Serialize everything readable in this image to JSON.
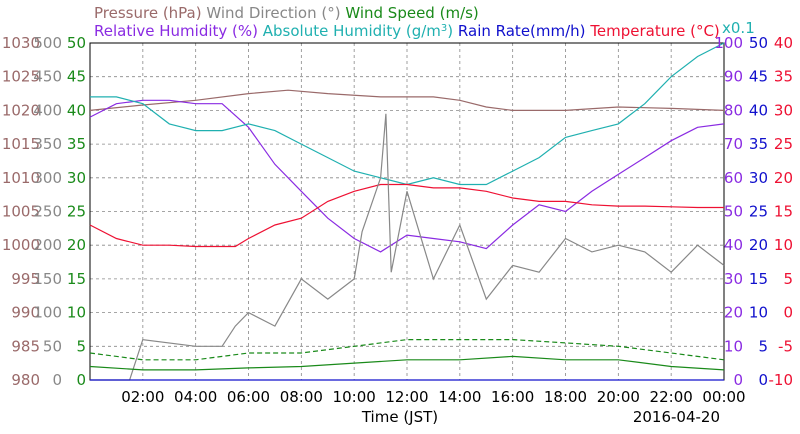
{
  "chart_data": {
    "type": "line",
    "legend": {
      "row1": [
        {
          "text": "Pressure (hPa)",
          "color": "#9a6a6a"
        },
        {
          "text": "Wind Direction (°)",
          "color": "#888888"
        },
        {
          "text": "Wind Speed (m/s)",
          "color": "#1a8a1a"
        }
      ],
      "row2": [
        {
          "text": "Relative Humidity (%)",
          "color": "#8a2be2"
        },
        {
          "text": "Absolute Humidity (g/m",
          "sup": "3",
          "close": ")",
          "color": "#20b0b0"
        },
        {
          "text": "Rain Rate(mm/h)",
          "color": "#1010cc"
        },
        {
          "text": "Temperature (°C)",
          "color": "#ee1133"
        }
      ],
      "ah_scale_note": "x0.1"
    },
    "xlabel": "Time (JST)",
    "date_label": "2016-04-20",
    "x_ticks": [
      "02:00",
      "04:00",
      "06:00",
      "08:00",
      "10:00",
      "12:00",
      "14:00",
      "16:00",
      "18:00",
      "20:00",
      "22:00",
      "00:00"
    ],
    "x_range_hours": [
      0,
      24
    ],
    "axes": {
      "pressure": {
        "ticks": [
          "1030",
          "1025",
          "1020",
          "1015",
          "1010",
          "1005",
          "1000",
          "995",
          "990",
          "985",
          "980"
        ],
        "range": [
          980,
          1030
        ],
        "color": "#9a6a6a"
      },
      "wind_dir": {
        "ticks": [
          "500",
          "450",
          "400",
          "350",
          "300",
          "250",
          "200",
          "150",
          "100",
          "50",
          "0"
        ],
        "range": [
          0,
          500
        ],
        "color": "#888888"
      },
      "wind_speed": {
        "ticks": [
          "50",
          "45",
          "40",
          "35",
          "30",
          "25",
          "20",
          "15",
          "10",
          "5",
          "0"
        ],
        "range": [
          0,
          50
        ],
        "color": "#1a8a1a"
      },
      "humidity": {
        "ticks": [
          "100",
          "90",
          "80",
          "70",
          "60",
          "50",
          "40",
          "30",
          "20",
          "10",
          "0"
        ],
        "range": [
          0,
          100
        ],
        "color": "#8a2be2"
      },
      "rain_rate": {
        "ticks": [
          "50",
          "45",
          "40",
          "35",
          "30",
          "25",
          "20",
          "15",
          "10",
          "5",
          "0"
        ],
        "range": [
          0,
          50
        ],
        "color": "#1010cc"
      },
      "temperature": {
        "ticks": [
          "40",
          "35",
          "30",
          "25",
          "20",
          "15",
          "10",
          "5",
          "0",
          "-5",
          "-10"
        ],
        "range": [
          -10,
          40
        ],
        "color": "#ee1133"
      }
    },
    "grid": true,
    "series": [
      {
        "name": "Pressure",
        "color": "#9a6a6a",
        "x": [
          0,
          2,
          4,
          6,
          7.5,
          9,
          11,
          13,
          14,
          15,
          16,
          18,
          20,
          22,
          24
        ],
        "y": [
          1020,
          1020.8,
          1021.5,
          1022.5,
          1023.0,
          1022.5,
          1022.0,
          1022.0,
          1021.5,
          1020.5,
          1020,
          1020,
          1020.5,
          1020.3,
          1020.0
        ]
      },
      {
        "name": "Relative Humidity",
        "color": "#8a2be2",
        "x": [
          0,
          1,
          2,
          3,
          4,
          5,
          6,
          7,
          8,
          9,
          10,
          11,
          12,
          13,
          14,
          15,
          16,
          17,
          18,
          19,
          20,
          21,
          22,
          23,
          24
        ],
        "y": [
          78,
          82,
          83,
          83,
          82,
          82,
          75,
          64,
          56,
          48,
          42,
          38,
          43,
          42,
          41,
          39,
          46,
          52,
          50,
          56,
          61,
          66,
          71,
          75,
          76
        ]
      },
      {
        "name": "Absolute Humidity",
        "color": "#20b0b0",
        "x": [
          0,
          1,
          2,
          3,
          4,
          5,
          6,
          7,
          8,
          9,
          10,
          11,
          12,
          13,
          14,
          15,
          16,
          17,
          18,
          19,
          20,
          21,
          22,
          23,
          24
        ],
        "y": [
          42,
          42,
          41,
          38,
          37,
          37,
          38,
          37,
          35,
          33,
          31,
          30,
          29,
          30,
          29,
          29,
          31,
          33,
          36,
          37,
          38,
          41,
          45,
          48,
          50
        ]
      },
      {
        "name": "Temperature",
        "color": "#ee1133",
        "x": [
          0,
          1,
          2,
          3,
          4,
          5,
          5.5,
          6,
          7,
          8,
          9,
          10,
          11,
          12,
          13,
          14,
          15,
          16,
          17,
          18,
          19,
          20,
          21,
          22,
          23,
          24
        ],
        "y": [
          13,
          11,
          10,
          10,
          9.8,
          9.8,
          9.8,
          11,
          13,
          14,
          16.5,
          18,
          19,
          19,
          18.5,
          18.5,
          18,
          17,
          16.5,
          16.5,
          16,
          15.8,
          15.8,
          15.7,
          15.6,
          15.6
        ]
      },
      {
        "name": "Wind Direction",
        "color": "#888888",
        "x": [
          0,
          1.5,
          2,
          4,
          5,
          5.5,
          6,
          7,
          8,
          9,
          10,
          10.3,
          11,
          11.2,
          11.4,
          12,
          13,
          14,
          15,
          16,
          17,
          18,
          19,
          20,
          21,
          22,
          23,
          24
        ],
        "y": [
          0,
          0,
          60,
          50,
          50,
          80,
          100,
          80,
          150,
          120,
          150,
          220,
          300,
          395,
          160,
          280,
          150,
          230,
          120,
          170,
          160,
          210,
          190,
          200,
          190,
          160,
          200,
          170
        ]
      },
      {
        "name": "Wind Speed",
        "color": "#1a8a1a",
        "x": [
          0,
          2,
          4,
          6,
          8,
          10,
          12,
          14,
          16,
          18,
          20,
          22,
          24
        ],
        "y": [
          2,
          1.5,
          1.5,
          1.8,
          2,
          2.5,
          3,
          3,
          3.5,
          3,
          3,
          2,
          1.5
        ]
      },
      {
        "name": "Wind Speed (gust)",
        "color": "#1a8a1a",
        "dashed": true,
        "x": [
          0,
          2,
          4,
          6,
          8,
          10,
          12,
          14,
          16,
          18,
          20,
          22,
          24
        ],
        "y": [
          4,
          3,
          3,
          4,
          4,
          5,
          6,
          6,
          6,
          5.5,
          5,
          4,
          3
        ]
      },
      {
        "name": "Rain Rate",
        "color": "#1010cc",
        "x": [
          0,
          24
        ],
        "y": [
          0,
          0
        ]
      }
    ]
  }
}
